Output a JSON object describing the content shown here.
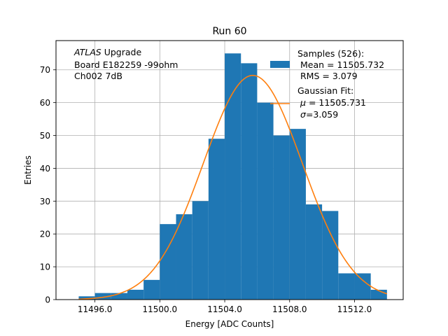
{
  "chart_data": {
    "type": "bar",
    "title": "Run 60",
    "xlabel": "Energy [ADC Counts]",
    "ylabel": "Entries",
    "xlim": [
      11493.6,
      11515.0
    ],
    "ylim": [
      0,
      78.9
    ],
    "xticks": [
      11496,
      11500,
      11504,
      11508,
      11512
    ],
    "xtick_labels": [
      "11496.0",
      "11500.0",
      "11504.0",
      "11508.0",
      "11512.0"
    ],
    "yticks": [
      0,
      10,
      20,
      30,
      40,
      50,
      60,
      70
    ],
    "grid": true,
    "annotation": {
      "atlas": "ATLAS",
      "line1": "Upgrade",
      "line2": "Board E182259 -99ohm",
      "line3": "Ch002 7dB"
    },
    "histogram": {
      "name": "Samples (526):",
      "stat_lines": [
        "Mean = 11505.732",
        "RMS = 3.079"
      ],
      "color": "#1f77b4",
      "bin_edges": [
        11495.0,
        11496.0,
        11497.0,
        11498.0,
        11499.0,
        11500.0,
        11501.0,
        11502.0,
        11503.0,
        11504.0,
        11505.0,
        11506.0,
        11507.0,
        11508.0,
        11509.0,
        11510.0,
        11511.0,
        11512.0,
        11513.0,
        11514.0
      ],
      "counts": [
        1,
        2,
        2,
        3,
        6,
        23,
        26,
        30,
        49,
        75,
        72,
        60,
        50,
        52,
        29,
        27,
        8,
        8,
        3
      ]
    },
    "fit": {
      "name": "Gaussian Fit:",
      "mu_label": "μ",
      "mu_value": "= 11505.731",
      "sigma_label": "σ",
      "sigma_value": "=3.059",
      "mu": 11505.731,
      "sigma": 3.059,
      "amplitude": 68.3,
      "x_range": [
        11495.0,
        11514.0
      ],
      "color": "#ff7f0e"
    },
    "legend_position": "upper-right"
  }
}
